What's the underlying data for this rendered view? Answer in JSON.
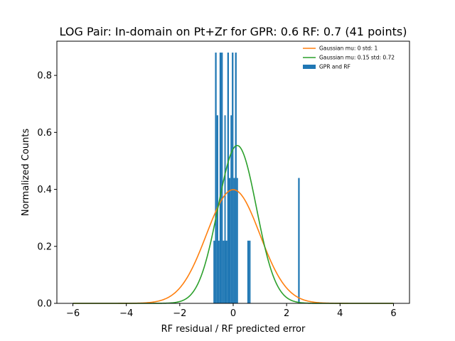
{
  "chart_data": {
    "type": "bar",
    "title": "LOG Pair: In-domain on Pt+Zr for GPR: 0.6 RF: 0.7 (41 points)",
    "xlabel": "RF residual / RF predicted error",
    "ylabel": "Normalized Counts",
    "xlim": [
      -6.6,
      6.6
    ],
    "ylim": [
      0,
      0.92
    ],
    "xticks": [
      -6,
      -4,
      -2,
      0,
      2,
      4,
      6
    ],
    "xtick_labels": [
      "−6",
      "−4",
      "−2",
      "0",
      "2",
      "4",
      "6"
    ],
    "yticks": [
      0.0,
      0.2,
      0.4,
      0.6,
      0.8
    ],
    "ytick_labels": [
      "0.0",
      "0.2",
      "0.4",
      "0.6",
      "0.8"
    ],
    "grid": false,
    "legend_position": "top-right",
    "histogram": {
      "name": "GPR and RF",
      "color": "#1f77b4",
      "bin_edges": [
        -0.74,
        -0.68,
        -0.62,
        -0.56,
        -0.51,
        -0.45,
        -0.39,
        -0.33,
        -0.28,
        -0.22,
        -0.16,
        -0.1,
        -0.05,
        0.01,
        0.07,
        0.13,
        0.18,
        0.24,
        0.3,
        0.36,
        0.41,
        0.47,
        0.53,
        0.59,
        0.65,
        0.7,
        0.76,
        0.82,
        0.88,
        0.93,
        0.99,
        1.05,
        1.11,
        1.16,
        1.22,
        1.28,
        1.34,
        1.39,
        1.45,
        1.51,
        1.57,
        1.62,
        1.68,
        1.74,
        1.8,
        1.85,
        1.91,
        1.97,
        2.03,
        2.08,
        2.14,
        2.2,
        2.26,
        2.31,
        2.37,
        2.43,
        2.49,
        2.54
      ],
      "counts": [
        0.22,
        0.88,
        0.66,
        0.22,
        0.88,
        0.88,
        0.22,
        0.66,
        0.22,
        0.88,
        0.44,
        0.66,
        0.88,
        0.44,
        0.88,
        0.44,
        0,
        0,
        0,
        0,
        0,
        0,
        0.22,
        0.22,
        0,
        0,
        0,
        0,
        0,
        0,
        0,
        0,
        0,
        0,
        0,
        0,
        0,
        0,
        0,
        0,
        0,
        0,
        0,
        0,
        0,
        0,
        0,
        0,
        0,
        0,
        0,
        0,
        0,
        0,
        0,
        0.44,
        0
      ]
    },
    "series": [
      {
        "name": "Gaussian mu: 0 std: 1",
        "mu": 0,
        "std": 1,
        "color": "#ff7f0e",
        "x_range": [
          -6,
          6
        ]
      },
      {
        "name": "Gaussian mu: 0.15 std: 0.72",
        "mu": 0.15,
        "std": 0.72,
        "color": "#2ca02c",
        "x_range": [
          -6,
          6
        ]
      }
    ],
    "legend": [
      {
        "label": "Gaussian mu: 0 std: 1",
        "kind": "line",
        "color": "#ff7f0e"
      },
      {
        "label": "Gaussian mu: 0.15 std: 0.72",
        "kind": "line",
        "color": "#2ca02c"
      },
      {
        "label": "GPR and RF",
        "kind": "patch",
        "color": "#1f77b4"
      }
    ]
  }
}
